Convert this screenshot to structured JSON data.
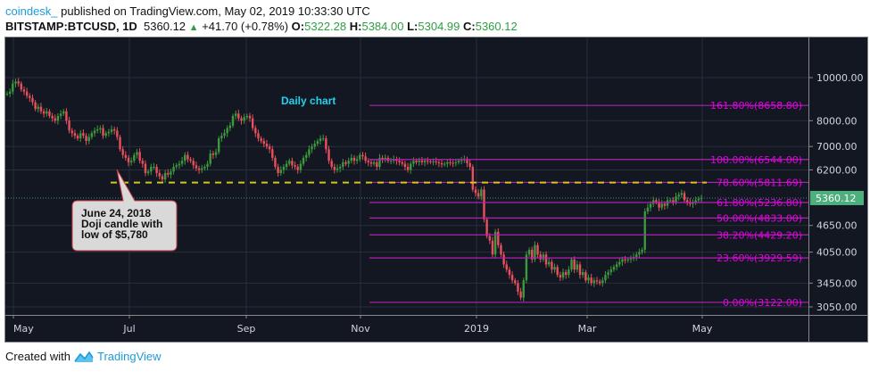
{
  "header": {
    "publisher": "coindesk_",
    "published_text": " published on TradingView.com, May 02, 2019 10:33:30 UTC",
    "symbol": "BITSTAMP:BTCUSD, 1D",
    "last": "5360.12",
    "change": "+41.70 (+0.78%)",
    "open_label": "O:",
    "open": "5322.28",
    "high_label": "H:",
    "high": "5384.00",
    "low_label": "L:",
    "low": "5304.99",
    "close_label": "C:",
    "close": "5360.12"
  },
  "footer": {
    "created_with": "Created with",
    "brand": "TradingView"
  },
  "colors": {
    "background": "#131722",
    "grid": "#2a2e39",
    "up": "#3c9a3c",
    "down": "#e8505b",
    "fib": "#b31fb3",
    "fib_text": "#e600e6",
    "support_line": "#d4c619",
    "price_badge": "#4caf7d",
    "annotation_title": "#22d3ee"
  },
  "chart_data": {
    "type": "candlestick",
    "title": "BITSTAMP:BTCUSD, 1D",
    "annotation_title": "Daily chart",
    "callout": [
      "June 24, 2018",
      "Doji candle with",
      "low of $5,780"
    ],
    "x_ticks": [
      "May",
      "Jul",
      "Sep",
      "Nov",
      "2019",
      "Mar",
      "May"
    ],
    "y_ticks": [
      10000.0,
      8000.0,
      7000.0,
      6200.0,
      4650.0,
      4050.0,
      3450.0,
      3050.0
    ],
    "y_tick_labels": [
      "10000.00",
      "8000.00",
      "7000.00",
      "6200.00",
      "4650.00",
      "4050.00",
      "3450.00",
      "3050.00"
    ],
    "current_price": 5360.12,
    "current_price_label": "5360.12",
    "support_level": 5780,
    "fib_levels": [
      {
        "label": "161.80%(8658.80)",
        "value": 8658.8
      },
      {
        "label": "100.00%(6544.00)",
        "value": 6544.0
      },
      {
        "label": "78.60%(5811.69)",
        "value": 5811.69
      },
      {
        "label": "61.80%(5236.80)",
        "value": 5236.8
      },
      {
        "label": "50.00%(4833.00)",
        "value": 4833.0
      },
      {
        "label": "38.20%(4429.20)",
        "value": 4429.2
      },
      {
        "label": "23.60%(3929.59)",
        "value": 3929.59
      },
      {
        "label": "0.00%(3122.00)",
        "value": 3122.0
      }
    ],
    "series_approx_closes": {
      "start": "2018-05-01",
      "step_days": 1,
      "values": [
        9200,
        9300,
        9700,
        9800,
        9700,
        9400,
        9300,
        9100,
        9000,
        8800,
        8500,
        8600,
        8400,
        8300,
        8400,
        8200,
        8100,
        8000,
        8200,
        8300,
        8400,
        8000,
        7600,
        7500,
        7400,
        7300,
        7500,
        7400,
        7200,
        7350,
        7500,
        7600,
        7650,
        7700,
        7400,
        7500,
        7550,
        7650,
        7600,
        7350,
        6900,
        6700,
        6600,
        6450,
        6500,
        6700,
        6800,
        6500,
        6400,
        6100,
        6150,
        6300,
        6300,
        6100,
        6000,
        5900,
        6100,
        6050,
        6150,
        6300,
        6350,
        6400,
        6500,
        6700,
        6550,
        6500,
        6350,
        6250,
        6200,
        6250,
        6300,
        6400,
        6750,
        6700,
        6800,
        7300,
        7400,
        7500,
        7700,
        7800,
        8200,
        8300,
        8100,
        8000,
        8150,
        8200,
        8100,
        7700,
        7500,
        7300,
        7200,
        7100,
        7000,
        6900,
        6600,
        6300,
        6100,
        6200,
        6300,
        6400,
        6500,
        6350,
        6300,
        6200,
        6400,
        6600,
        6700,
        6900,
        7000,
        7100,
        7200,
        7300,
        7300,
        6900,
        6500,
        6300,
        6200,
        6250,
        6300,
        6450,
        6400,
        6500,
        6600,
        6500,
        6550,
        6700,
        6650,
        6500,
        6450,
        6400,
        6450,
        6300,
        6600,
        6550,
        6600,
        6500,
        6500,
        6550,
        6500,
        6450,
        6400,
        6300,
        6200,
        6400,
        6500,
        6450,
        6500,
        6450,
        6500,
        6480,
        6470,
        6480,
        6450,
        6420,
        6380,
        6400,
        6450,
        6430,
        6420,
        6450,
        6500,
        6520,
        6550,
        6420,
        6300,
        5600,
        5500,
        5400,
        5600,
        4800,
        4400,
        4300,
        4000,
        4500,
        4200,
        4000,
        3800,
        3700,
        3600,
        3500,
        3450,
        3300,
        3200,
        3500,
        4000,
        4100,
        3900,
        4200,
        4000,
        3900,
        4000,
        3800,
        3850,
        3700,
        3750,
        3600,
        3550,
        3650,
        3600,
        3700,
        3900,
        3700,
        3800,
        3600,
        3650,
        3500,
        3550,
        3450,
        3500,
        3480,
        3450,
        3500,
        3600,
        3650,
        3700,
        3750,
        3800,
        3850,
        3900,
        3880,
        3900,
        3920,
        3950,
        4000,
        4050,
        4100,
        5000,
        5100,
        5200,
        5300,
        5250,
        5100,
        5200,
        5150,
        5300,
        5300,
        5250,
        5400,
        5450,
        5500,
        5300,
        5250,
        5200,
        5250,
        5300,
        5340,
        5360
      ]
    }
  }
}
